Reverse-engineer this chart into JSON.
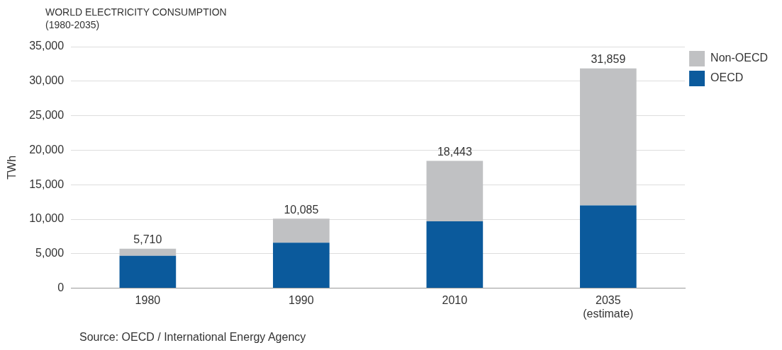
{
  "chart_data": {
    "type": "bar",
    "title": "WORLD ELECTRICITY CONSUMPTION",
    "subtitle": "(1980-2035)",
    "ylabel": "TWh",
    "categories": [
      "1980",
      "1990",
      "2010",
      "2035\n(estimate)"
    ],
    "series": [
      {
        "name": "OECD",
        "color": "#0b5a9c",
        "values": [
          4700,
          6600,
          9700,
          12000
        ]
      },
      {
        "name": "Non-OECD",
        "color": "#c0c1c3",
        "values": [
          1010,
          3485,
          8743,
          19859
        ]
      }
    ],
    "stacked": true,
    "totals": [
      "5,710",
      "10,085",
      "18,443",
      "31,859"
    ],
    "ylim": [
      0,
      35000
    ],
    "yticks": [
      0,
      {
        "value": 5000,
        "label": "5,000"
      },
      {
        "value": 10000,
        "label": "10,000"
      },
      {
        "value": 15000,
        "label": "15,000"
      },
      {
        "value": 20000,
        "label": "20,000"
      },
      {
        "value": 25000,
        "label": "25,000"
      },
      {
        "value": 30000,
        "label": "30,000"
      },
      {
        "value": 35000,
        "label": "35,000"
      }
    ],
    "grid": "y",
    "legend": "top right",
    "annotations": [
      "Source: OECD / International Energy Agency"
    ]
  }
}
